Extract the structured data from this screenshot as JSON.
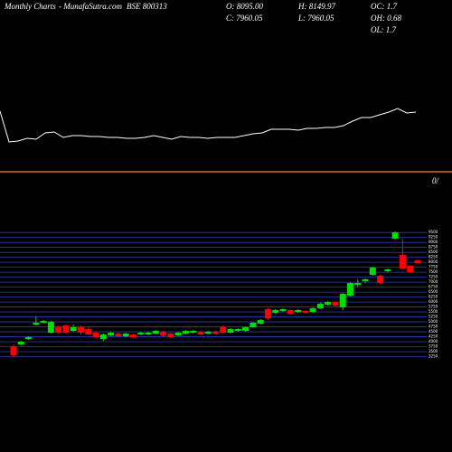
{
  "header": {
    "brand": "Monthly Charts",
    "site": "- MunafaSutra.com",
    "symbol": "BSE 800313",
    "open": "O: 8095.00",
    "high": "H: 8149.97",
    "oc": "OC: 1.7",
    "close": "C: 7960.05",
    "low": "L: 7960.05",
    "oh": "OH: 0.68",
    "ol": "OL: 1.7",
    "marker": "0/"
  },
  "chart_data": [
    {
      "type": "line",
      "color": "#ffffff",
      "ylim": [
        0,
        100
      ],
      "values": [
        77,
        43,
        44,
        47,
        46,
        53,
        54,
        48,
        50,
        50,
        49,
        49,
        48,
        48,
        47,
        47,
        48,
        50,
        48,
        46,
        49,
        48,
        48,
        47,
        48,
        48,
        48,
        50,
        52,
        53,
        57,
        57,
        57,
        56,
        58,
        58,
        59,
        59,
        61,
        66,
        70,
        70,
        73,
        76,
        80,
        75,
        76
      ]
    },
    {
      "type": "candlestick",
      "up_color": "#00dd00",
      "down_color": "#ff0000",
      "grid": true,
      "grid_color": "#2a3fb0",
      "ylim": [
        3000,
        9600
      ],
      "yticks": [
        3250,
        3500,
        3750,
        4000,
        4250,
        4500,
        4750,
        5000,
        5250,
        5500,
        5750,
        6000,
        6250,
        6500,
        6750,
        7000,
        7250,
        7500,
        7750,
        8000,
        8250,
        8500,
        8750,
        9000,
        9250,
        9500
      ],
      "open": [
        3774,
        3865,
        4138,
        4866,
        4957,
        4456,
        4729,
        4820,
        4547,
        4729,
        4638,
        4456,
        4138,
        4320,
        4411,
        4274,
        4365,
        4365,
        4365,
        4411,
        4502,
        4411,
        4320,
        4411,
        4456,
        4502,
        4411,
        4502,
        4729,
        4456,
        4547,
        4547,
        4729,
        4911,
        5639,
        5457,
        5548,
        5594,
        5503,
        5548,
        5503,
        5685,
        5867,
        6003,
        5730,
        6322,
        6868,
        7050,
        7368,
        7323,
        7550,
        9188,
        8369,
        7823,
        8095
      ],
      "high": [
        3865,
        4047,
        4274,
        5275,
        5093,
        5048,
        4820,
        4866,
        4866,
        4820,
        4729,
        4547,
        4411,
        4502,
        4456,
        4456,
        4411,
        4502,
        4502,
        4593,
        4547,
        4456,
        4502,
        4593,
        4593,
        4547,
        4547,
        4547,
        4820,
        4684,
        4684,
        4775,
        5002,
        5139,
        5685,
        5639,
        5685,
        5639,
        5639,
        5594,
        5730,
        5958,
        6049,
        6049,
        6459,
        7005,
        7141,
        7186,
        7778,
        7368,
        7687,
        9552,
        9188,
        7869,
        8149.97
      ],
      "low": [
        3228,
        3820,
        4092,
        4820,
        4911,
        4411,
        4411,
        4411,
        4502,
        4365,
        4320,
        4183,
        4047,
        4274,
        4229,
        4229,
        4183,
        4320,
        4320,
        4365,
        4274,
        4183,
        4274,
        4365,
        4411,
        4320,
        4365,
        4365,
        4411,
        4411,
        4502,
        4502,
        4684,
        4866,
        5093,
        5412,
        5503,
        5366,
        5457,
        5412,
        5457,
        5639,
        5821,
        5776,
        5594,
        6277,
        6777,
        6959,
        7323,
        6913,
        7505,
        9143,
        7641,
        7460,
        7960.05
      ],
      "close": [
        3319,
        4001,
        4229,
        4957,
        5048,
        5002,
        4456,
        4456,
        4729,
        4456,
        4365,
        4229,
        4365,
        4456,
        4274,
        4411,
        4229,
        4456,
        4456,
        4547,
        4320,
        4229,
        4456,
        4547,
        4547,
        4365,
        4502,
        4411,
        4456,
        4638,
        4638,
        4729,
        4957,
        5093,
        5184,
        5594,
        5639,
        5412,
        5594,
        5457,
        5685,
        5912,
        6003,
        5821,
        6413,
        6959,
        6959,
        7141,
        7732,
        6959,
        7641,
        9507,
        7687,
        7505,
        7960.05
      ]
    }
  ]
}
